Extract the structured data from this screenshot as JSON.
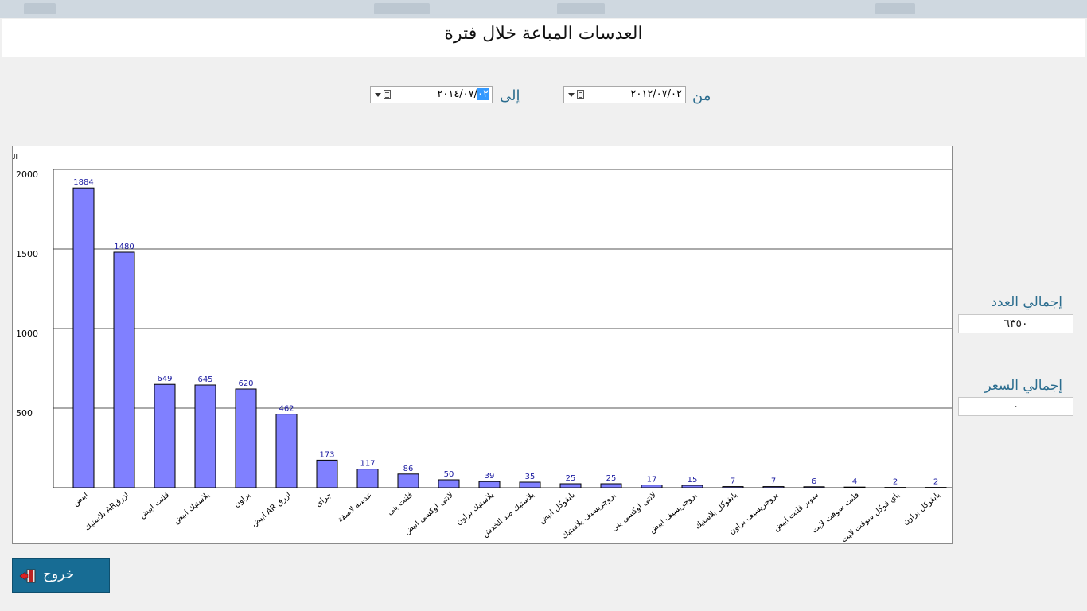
{
  "window": {
    "title": "العدسات المباعة خلال فترة"
  },
  "filters": {
    "from_label": "من",
    "from_value": "٢٠١٢/٠٧/٠٢",
    "to_label": "إلى",
    "to_value_main": "٢٠١٤/٠٧/",
    "to_value_selected": "٠٢"
  },
  "totals": {
    "count_label": "إجمالي العدد",
    "count_value": "٦٣٥٠",
    "price_label": "إجمالي السعر",
    "price_value": "٠"
  },
  "exit_button": {
    "label": "خروج",
    "icon": "exit-door-icon"
  },
  "colors": {
    "bar_fill": "#8080ff",
    "accent": "#2b6d8f",
    "button_bg": "#176c94"
  },
  "chart_data": {
    "type": "bar",
    "ylabel": "العدد",
    "ylim": [
      0,
      2000
    ],
    "yticks": [
      500,
      1000,
      1500,
      2000
    ],
    "grid": true,
    "categories": [
      "ابيض",
      "بلاستيك ARازرق",
      "فلنت ابيض",
      "بلاستيك ابيض",
      "براون",
      "ابيض AR ازرق",
      "جراى",
      "عدسة لاصقة",
      "فلنت بنى",
      "لانتى اوكسى ابيض",
      "بلاستيك براون",
      "بلاستيك ضد الخدش",
      "بايفوكل ابيض",
      "بروجريسيف بلاستيك",
      "لانتى اوكسى بنى",
      "بروجريسيف ابيض",
      "بايفوكل بلاستيك",
      "بروجريسيف براون",
      "سوبر فلنت ابيض",
      "فلنت سوفت لايت",
      "باي فوكل سوفت لايت",
      "بايفوكل براون"
    ],
    "values": [
      1884,
      1480,
      649,
      645,
      620,
      462,
      173,
      117,
      86,
      50,
      39,
      35,
      25,
      25,
      17,
      15,
      7,
      7,
      6,
      4,
      2,
      2
    ]
  }
}
